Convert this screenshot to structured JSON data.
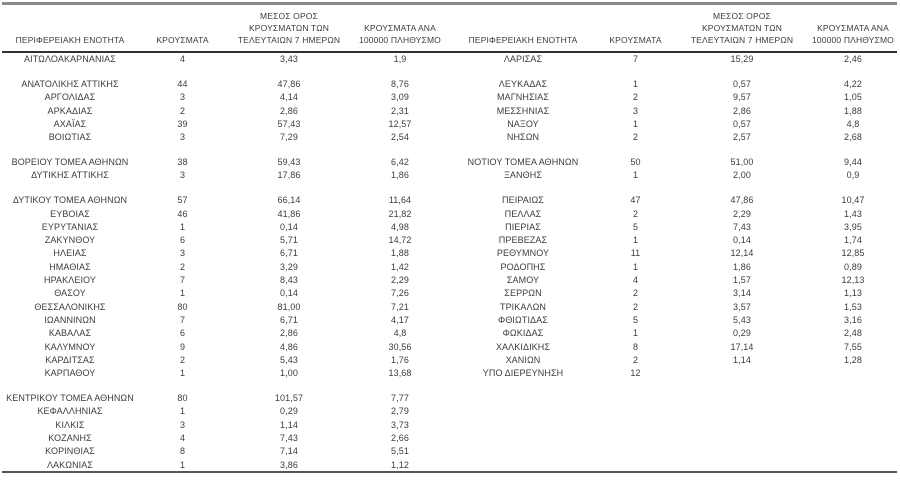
{
  "columns": {
    "region": [
      "ΠΕΡΙΦΕΡΕΙΑΚΗ ΕΝΟΤΗΤΑ"
    ],
    "cases": [
      "ΚΡΟΥΣΜΑΤΑ"
    ],
    "avg7": [
      "ΜΕΣΟΣ ΟΡΟΣ",
      "ΚΡΟΥΣΜΑΤΩΝ ΤΩΝ",
      "ΤΕΛΕΥΤΑΙΩΝ 7 ΗΜΕΡΩΝ"
    ],
    "per100k": [
      "ΚΡΟΥΣΜΑΤΑ ΑΝΑ",
      "100000 ΠΛΗΘΥΣΜΟ"
    ]
  },
  "tables": [
    {
      "id": "left",
      "groups": [
        [
          [
            "ΑΙΤΩΛΟΑΚΑΡΝΑΝΙΑΣ",
            "4",
            "3,43",
            "1,9"
          ]
        ],
        [
          [
            "ΑΝΑΤΟΛΙΚΗΣ ΑΤΤΙΚΗΣ",
            "44",
            "47,86",
            "8,76"
          ],
          [
            "ΑΡΓΟΛΙΔΑΣ",
            "3",
            "4,14",
            "3,09"
          ],
          [
            "ΑΡΚΑΔΙΑΣ",
            "2",
            "2,86",
            "2,31"
          ],
          [
            "ΑΧΑΪΑΣ",
            "39",
            "57,43",
            "12,57"
          ],
          [
            "ΒΟΙΩΤΙΑΣ",
            "3",
            "7,29",
            "2,54"
          ]
        ],
        [
          [
            "ΒΟΡΕΙΟΥ ΤΟΜΕΑ ΑΘΗΝΩΝ",
            "38",
            "59,43",
            "6,42"
          ],
          [
            "ΔΥΤΙΚΗΣ ΑΤΤΙΚΗΣ",
            "3",
            "17,86",
            "1,86"
          ]
        ],
        [
          [
            "ΔΥΤΙΚΟΥ ΤΟΜΕΑ ΑΘΗΝΩΝ",
            "57",
            "66,14",
            "11,64"
          ],
          [
            "ΕΥΒΟΙΑΣ",
            "46",
            "41,86",
            "21,82"
          ],
          [
            "ΕΥΡΥΤΑΝΙΑΣ",
            "1",
            "0,14",
            "4,98"
          ],
          [
            "ΖΑΚΥΝΘΟΥ",
            "6",
            "5,71",
            "14,72"
          ],
          [
            "ΗΛΕΙΑΣ",
            "3",
            "6,71",
            "1,88"
          ],
          [
            "ΗΜΑΘΙΑΣ",
            "2",
            "3,29",
            "1,42"
          ],
          [
            "ΗΡΑΚΛΕΙΟΥ",
            "7",
            "8,43",
            "2,29"
          ],
          [
            "ΘΑΣΟΥ",
            "1",
            "0,14",
            "7,26"
          ],
          [
            "ΘΕΣΣΑΛΟΝΙΚΗΣ",
            "80",
            "81,00",
            "7,21"
          ],
          [
            "ΙΩΑΝΝΙΝΩΝ",
            "7",
            "6,71",
            "4,17"
          ],
          [
            "ΚΑΒΑΛΑΣ",
            "6",
            "2,86",
            "4,8"
          ],
          [
            "ΚΑΛΥΜΝΟΥ",
            "9",
            "4,86",
            "30,56"
          ],
          [
            "ΚΑΡΔΙΤΣΑΣ",
            "2",
            "5,43",
            "1,76"
          ],
          [
            "ΚΑΡΠΑΘΟΥ",
            "1",
            "1,00",
            "13,68"
          ]
        ],
        [
          [
            "ΚΕΝΤΡΙΚΟΥ ΤΟΜΕΑ ΑΘΗΝΩΝ",
            "80",
            "101,57",
            "7,77"
          ],
          [
            "ΚΕΦΑΛΛΗΝΙΑΣ",
            "1",
            "0,29",
            "2,79"
          ],
          [
            "ΚΙΛΚΙΣ",
            "3",
            "1,14",
            "3,73"
          ],
          [
            "ΚΟΖΑΝΗΣ",
            "4",
            "7,43",
            "2,66"
          ],
          [
            "ΚΟΡΙΝΘΙΑΣ",
            "8",
            "7,14",
            "5,51"
          ],
          [
            "ΛΑΚΩΝΙΑΣ",
            "1",
            "3,86",
            "1,12"
          ]
        ]
      ]
    },
    {
      "id": "right",
      "groups": [
        [
          [
            "ΛΑΡΙΣΑΣ",
            "7",
            "15,29",
            "2,46"
          ]
        ],
        [
          [
            "ΛΕΥΚΑΔΑΣ",
            "1",
            "0,57",
            "4,22"
          ],
          [
            "ΜΑΓΝΗΣΙΑΣ",
            "2",
            "9,57",
            "1,05"
          ],
          [
            "ΜΕΣΣΗΝΙΑΣ",
            "3",
            "2,86",
            "1,88"
          ],
          [
            "ΝΑΞΟΥ",
            "1",
            "0,57",
            "4,8"
          ],
          [
            "ΝΗΣΩΝ",
            "2",
            "2,57",
            "2,68"
          ]
        ],
        [
          [
            "ΝΟΤΙΟΥ ΤΟΜΕΑ ΑΘΗΝΩΝ",
            "50",
            "51,00",
            "9,44"
          ],
          [
            "ΞΑΝΘΗΣ",
            "1",
            "2,00",
            "0,9"
          ]
        ],
        [
          [
            "ΠΕΙΡΑΙΩΣ",
            "47",
            "47,86",
            "10,47"
          ],
          [
            "ΠΕΛΛΑΣ",
            "2",
            "2,29",
            "1,43"
          ],
          [
            "ΠΙΕΡΙΑΣ",
            "5",
            "7,43",
            "3,95"
          ],
          [
            "ΠΡΕΒΕΖΑΣ",
            "1",
            "0,14",
            "1,74"
          ],
          [
            "ΡΕΘΥΜΝΟΥ",
            "11",
            "12,14",
            "12,85"
          ],
          [
            "ΡΟΔΟΠΗΣ",
            "1",
            "1,86",
            "0,89"
          ],
          [
            "ΣΑΜΟΥ",
            "4",
            "1,57",
            "12,13"
          ],
          [
            "ΣΕΡΡΩΝ",
            "2",
            "3,14",
            "1,13"
          ],
          [
            "ΤΡΙΚΑΛΩΝ",
            "2",
            "3,57",
            "1,53"
          ],
          [
            "ΦΘΙΩΤΙΔΑΣ",
            "5",
            "5,43",
            "3,16"
          ],
          [
            "ΦΩΚΙΔΑΣ",
            "1",
            "0,29",
            "2,48"
          ],
          [
            "ΧΑΛΚΙΔΙΚΗΣ",
            "8",
            "17,14",
            "7,55"
          ],
          [
            "ΧΑΝΙΩΝ",
            "2",
            "1,14",
            "1,28"
          ],
          [
            "ΥΠΟ ΔΙΕΡΕΥΝΗΣΗ",
            "12",
            "",
            ""
          ]
        ]
      ]
    }
  ],
  "colors": {
    "background": "#ffffff",
    "text": "#3c3c3c",
    "top_rule": "#8a8a8a",
    "header_rule": "#303030",
    "bottom_rule": "#565656"
  }
}
